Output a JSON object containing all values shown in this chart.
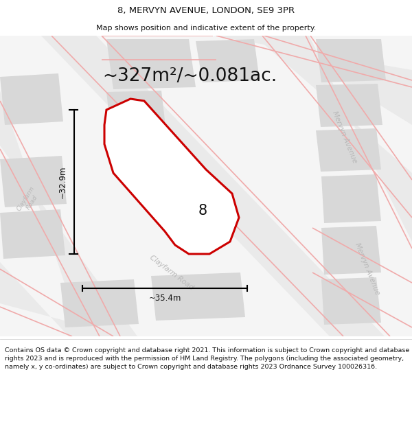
{
  "title": "8, MERVYN AVENUE, LONDON, SE9 3PR",
  "subtitle": "Map shows position and indicative extent of the property.",
  "area_text": "~327m²/~0.081ac.",
  "dim_width": "~35.4m",
  "dim_height": "~32.9m",
  "plot_number": "8",
  "footer": "Contains OS data © Crown copyright and database right 2021. This information is subject to Crown copyright and database rights 2023 and is reproduced with the permission of HM Land Registry. The polygons (including the associated geometry, namely x, y co-ordinates) are subject to Crown copyright and database rights 2023 Ordnance Survey 100026316.",
  "title_fontsize": 9.5,
  "subtitle_fontsize": 8.0,
  "area_fontsize": 19,
  "footer_fontsize": 6.8,
  "plot_outline_color": "#cc0000",
  "road_color": "#f0aaaa",
  "building_color": "#d8d8d8",
  "map_bg": "#efefef",
  "street_label_color": "#b8b8b8"
}
